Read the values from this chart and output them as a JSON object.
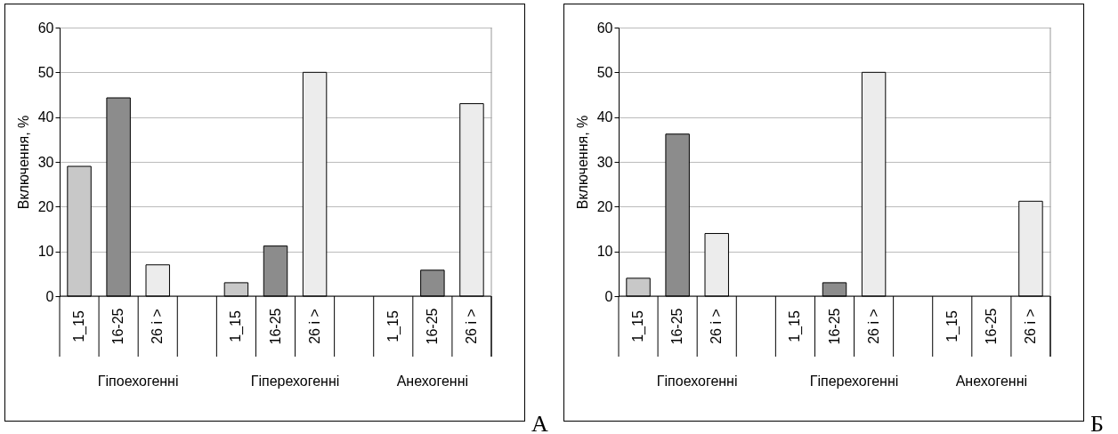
{
  "chart_data": [
    {
      "type": "bar",
      "ylabel": "Включення, %",
      "ylim": [
        0,
        60
      ],
      "yticks": [
        0,
        10,
        20,
        30,
        40,
        50,
        60
      ],
      "grid": "y",
      "categories": [
        "Гіпоехогенні",
        "Гіперехогенні",
        "Анехогенні"
      ],
      "series": [
        {
          "name": "1_15",
          "color": "#c8c8c8",
          "values": [
            29,
            3,
            0
          ]
        },
        {
          "name": "16-25",
          "color": "#8c8c8c",
          "values": [
            44.3,
            11.2,
            5.8
          ]
        },
        {
          "name": "26 і >",
          "color": "#ececec",
          "values": [
            7,
            50,
            43
          ]
        }
      ],
      "annotations": [
        "А"
      ]
    },
    {
      "type": "bar",
      "ylabel": "Включення, %",
      "ylim": [
        0,
        60
      ],
      "yticks": [
        0,
        10,
        20,
        30,
        40,
        50,
        60
      ],
      "grid": "y",
      "categories": [
        "Гіпоехогенні",
        "Гіперехогенні",
        "Анехогенні"
      ],
      "series": [
        {
          "name": "1_15",
          "color": "#c8c8c8",
          "values": [
            4,
            0,
            0
          ]
        },
        {
          "name": "16-25",
          "color": "#8c8c8c",
          "values": [
            36.2,
            3,
            0
          ]
        },
        {
          "name": "26 і >",
          "color": "#ececec",
          "values": [
            14,
            50,
            21.2
          ]
        }
      ],
      "annotations": [
        "Б"
      ]
    }
  ]
}
